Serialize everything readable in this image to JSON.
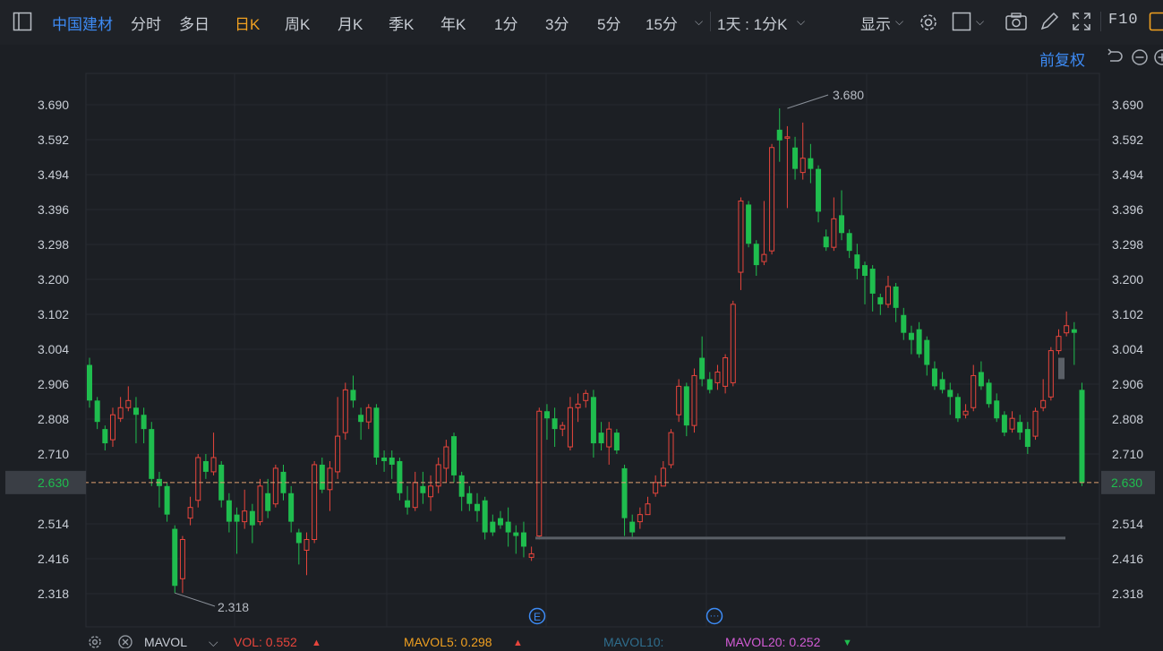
{
  "toolbar": {
    "stock_name": "中国建材",
    "periods": [
      "分时",
      "多日",
      "日K",
      "周K",
      "月K",
      "季K",
      "年K",
      "1分",
      "3分",
      "5分",
      "15分"
    ],
    "active_period": "日K",
    "range_label": "1天 : 1分K",
    "display_label": "显示",
    "f10_label": "F10"
  },
  "chart_header": {
    "adjust_label": "前复权"
  },
  "y_axis": {
    "ticks": [
      "3.690",
      "3.592",
      "3.494",
      "3.396",
      "3.298",
      "3.200",
      "3.102",
      "3.004",
      "2.906",
      "2.808",
      "2.710",
      "2.514",
      "2.416",
      "2.318"
    ],
    "current_price_label": "2.630"
  },
  "annotations": {
    "high_label": "3.680",
    "low_label": "2.318"
  },
  "markers": {
    "event_e": "E",
    "event_more": "···"
  },
  "indicator_bar": {
    "name": "MAVOL",
    "vol": "VOL: 0.552",
    "mavol5": "MAVOL5: 0.298",
    "mavol10": "MAVOL10:",
    "mavol20": "MAVOL20: 0.252"
  },
  "colors": {
    "up": "#e8453c",
    "down": "#1fbd4e",
    "accent": "#3d8bf5",
    "active": "#f0a020"
  },
  "chart_data": {
    "type": "candlestick",
    "y_range": [
      2.26,
      3.75
    ],
    "current_price": 2.63,
    "support_line": 2.474,
    "candles": [
      [
        2.96,
        2.86,
        2.98,
        2.84
      ],
      [
        2.86,
        2.8,
        2.87,
        2.78
      ],
      [
        2.78,
        2.74,
        2.79,
        2.72
      ],
      [
        2.75,
        2.82,
        2.84,
        2.73
      ],
      [
        2.81,
        2.84,
        2.87,
        2.8
      ],
      [
        2.84,
        2.86,
        2.9,
        2.83
      ],
      [
        2.84,
        2.82,
        2.87,
        2.74
      ],
      [
        2.82,
        2.78,
        2.84,
        2.74
      ],
      [
        2.78,
        2.64,
        2.8,
        2.62
      ],
      [
        2.64,
        2.62,
        2.66,
        2.56
      ],
      [
        2.62,
        2.54,
        2.63,
        2.52
      ],
      [
        2.5,
        2.34,
        2.51,
        2.32
      ],
      [
        2.36,
        2.47,
        2.48,
        2.32
      ],
      [
        2.53,
        2.56,
        2.59,
        2.51
      ],
      [
        2.58,
        2.7,
        2.71,
        2.56
      ],
      [
        2.69,
        2.66,
        2.71,
        2.64
      ],
      [
        2.66,
        2.7,
        2.77,
        2.65
      ],
      [
        2.68,
        2.58,
        2.69,
        2.56
      ],
      [
        2.58,
        2.52,
        2.6,
        2.49
      ],
      [
        2.54,
        2.52,
        2.56,
        2.43
      ],
      [
        2.52,
        2.55,
        2.61,
        2.5
      ],
      [
        2.55,
        2.51,
        2.57,
        2.46
      ],
      [
        2.52,
        2.62,
        2.64,
        2.51
      ],
      [
        2.6,
        2.55,
        2.64,
        2.53
      ],
      [
        2.57,
        2.67,
        2.68,
        2.56
      ],
      [
        2.66,
        2.6,
        2.68,
        2.58
      ],
      [
        2.6,
        2.52,
        2.62,
        2.49
      ],
      [
        2.49,
        2.46,
        2.5,
        2.4
      ],
      [
        2.44,
        2.47,
        2.49,
        2.37
      ],
      [
        2.47,
        2.68,
        2.69,
        2.46
      ],
      [
        2.68,
        2.61,
        2.7,
        2.6
      ],
      [
        2.61,
        2.67,
        2.69,
        2.55
      ],
      [
        2.66,
        2.76,
        2.87,
        2.64
      ],
      [
        2.77,
        2.89,
        2.91,
        2.75
      ],
      [
        2.89,
        2.86,
        2.93,
        2.84
      ],
      [
        2.82,
        2.8,
        2.84,
        2.75
      ],
      [
        2.8,
        2.84,
        2.85,
        2.78
      ],
      [
        2.84,
        2.7,
        2.85,
        2.68
      ],
      [
        2.7,
        2.69,
        2.72,
        2.66
      ],
      [
        2.7,
        2.68,
        2.72,
        2.64
      ],
      [
        2.69,
        2.6,
        2.7,
        2.58
      ],
      [
        2.58,
        2.56,
        2.62,
        2.54
      ],
      [
        2.56,
        2.63,
        2.66,
        2.55
      ],
      [
        2.62,
        2.6,
        2.66,
        2.57
      ],
      [
        2.59,
        2.62,
        2.65,
        2.55
      ],
      [
        2.62,
        2.68,
        2.7,
        2.6
      ],
      [
        2.67,
        2.73,
        2.75,
        2.63
      ],
      [
        2.76,
        2.65,
        2.77,
        2.63
      ],
      [
        2.65,
        2.59,
        2.66,
        2.55
      ],
      [
        2.6,
        2.57,
        2.62,
        2.55
      ],
      [
        2.57,
        2.55,
        2.6,
        2.52
      ],
      [
        2.58,
        2.49,
        2.59,
        2.47
      ],
      [
        2.52,
        2.49,
        2.54,
        2.48
      ],
      [
        2.53,
        2.51,
        2.55,
        2.5
      ],
      [
        2.52,
        2.49,
        2.56,
        2.45
      ],
      [
        2.49,
        2.48,
        2.51,
        2.43
      ],
      [
        2.49,
        2.45,
        2.52,
        2.42
      ],
      [
        2.42,
        2.43,
        2.45,
        2.41
      ],
      [
        2.48,
        2.83,
        2.84,
        2.47
      ],
      [
        2.83,
        2.81,
        2.85,
        2.75
      ],
      [
        2.81,
        2.78,
        2.84,
        2.73
      ],
      [
        2.78,
        2.79,
        2.8,
        2.76
      ],
      [
        2.73,
        2.84,
        2.87,
        2.72
      ],
      [
        2.84,
        2.85,
        2.88,
        2.8
      ],
      [
        2.86,
        2.88,
        2.89,
        2.84
      ],
      [
        2.87,
        2.74,
        2.89,
        2.7
      ],
      [
        2.77,
        2.74,
        2.8,
        2.72
      ],
      [
        2.73,
        2.78,
        2.8,
        2.68
      ],
      [
        2.77,
        2.72,
        2.78,
        2.71
      ],
      [
        2.67,
        2.53,
        2.68,
        2.48
      ],
      [
        2.52,
        2.49,
        2.54,
        2.47
      ],
      [
        2.52,
        2.54,
        2.56,
        2.5
      ],
      [
        2.54,
        2.57,
        2.59,
        2.54
      ],
      [
        2.6,
        2.63,
        2.65,
        2.59
      ],
      [
        2.62,
        2.67,
        2.69,
        2.62
      ],
      [
        2.68,
        2.77,
        2.78,
        2.67
      ],
      [
        2.82,
        2.9,
        2.92,
        2.8
      ],
      [
        2.9,
        2.79,
        2.91,
        2.76
      ],
      [
        2.79,
        2.93,
        2.95,
        2.77
      ],
      [
        2.98,
        2.92,
        3.04,
        2.9
      ],
      [
        2.92,
        2.89,
        2.94,
        2.88
      ],
      [
        2.91,
        2.94,
        2.96,
        2.89
      ],
      [
        2.9,
        2.98,
        2.99,
        2.88
      ],
      [
        2.91,
        3.13,
        3.14,
        2.9
      ],
      [
        3.22,
        3.42,
        3.43,
        3.17
      ],
      [
        3.41,
        3.3,
        3.42,
        3.29
      ],
      [
        3.3,
        3.24,
        3.31,
        3.21
      ],
      [
        3.25,
        3.27,
        3.42,
        3.24
      ],
      [
        3.28,
        3.57,
        3.58,
        3.27
      ],
      [
        3.62,
        3.59,
        3.68,
        3.53
      ],
      [
        3.6,
        3.6,
        3.63,
        3.4
      ],
      [
        3.57,
        3.51,
        3.6,
        3.48
      ],
      [
        3.5,
        3.54,
        3.64,
        3.48
      ],
      [
        3.54,
        3.51,
        3.58,
        3.47
      ],
      [
        3.51,
        3.39,
        3.52,
        3.36
      ],
      [
        3.32,
        3.29,
        3.34,
        3.28
      ],
      [
        3.29,
        3.37,
        3.43,
        3.28
      ],
      [
        3.38,
        3.33,
        3.45,
        3.31
      ],
      [
        3.33,
        3.28,
        3.34,
        3.26
      ],
      [
        3.27,
        3.23,
        3.3,
        3.2
      ],
      [
        3.24,
        3.21,
        3.25,
        3.13
      ],
      [
        3.23,
        3.16,
        3.24,
        3.11
      ],
      [
        3.15,
        3.13,
        3.16,
        3.1
      ],
      [
        3.13,
        3.18,
        3.21,
        3.12
      ],
      [
        3.18,
        3.12,
        3.19,
        3.08
      ],
      [
        3.1,
        3.05,
        3.12,
        3.03
      ],
      [
        3.05,
        3.03,
        3.07,
        2.99
      ],
      [
        3.06,
        2.99,
        3.08,
        2.98
      ],
      [
        3.03,
        2.96,
        3.04,
        2.93
      ],
      [
        2.95,
        2.9,
        2.97,
        2.89
      ],
      [
        2.92,
        2.89,
        2.94,
        2.88
      ],
      [
        2.89,
        2.87,
        2.91,
        2.82
      ],
      [
        2.87,
        2.81,
        2.88,
        2.8
      ],
      [
        2.82,
        2.83,
        2.85,
        2.81
      ],
      [
        2.84,
        2.93,
        2.96,
        2.83
      ],
      [
        2.94,
        2.9,
        2.97,
        2.89
      ],
      [
        2.91,
        2.85,
        2.92,
        2.84
      ],
      [
        2.86,
        2.81,
        2.88,
        2.8
      ],
      [
        2.82,
        2.77,
        2.83,
        2.76
      ],
      [
        2.78,
        2.81,
        2.83,
        2.77
      ],
      [
        2.8,
        2.77,
        2.82,
        2.75
      ],
      [
        2.78,
        2.73,
        2.8,
        2.71
      ],
      [
        2.76,
        2.83,
        2.84,
        2.75
      ],
      [
        2.84,
        2.86,
        2.92,
        2.83
      ],
      [
        2.87,
        3.0,
        3.01,
        2.86
      ],
      [
        3.0,
        3.04,
        3.06,
        2.99
      ],
      [
        3.05,
        3.07,
        3.11,
        3.04
      ],
      [
        3.06,
        3.05,
        3.08,
        2.96
      ]
    ],
    "current_candle": [
      2.89,
      2.63,
      2.91,
      2.62
    ]
  }
}
